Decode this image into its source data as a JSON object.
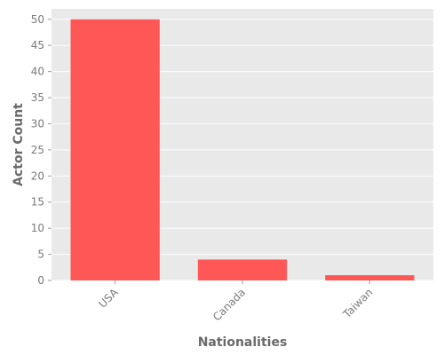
{
  "chart_data": {
    "type": "bar",
    "categories": [
      "USA",
      "Canada",
      "Taiwan"
    ],
    "values": [
      50,
      4,
      1
    ],
    "xlabel": "Nationalities",
    "ylabel": "Actor Count",
    "ylim": [
      0,
      52
    ],
    "yticks": [
      0,
      5,
      10,
      15,
      20,
      25,
      30,
      35,
      40,
      45,
      50
    ],
    "grid": true,
    "bar_color": "#FF5656",
    "background_color": "#E9E9E9",
    "grid_color": "#FFFFFF"
  }
}
